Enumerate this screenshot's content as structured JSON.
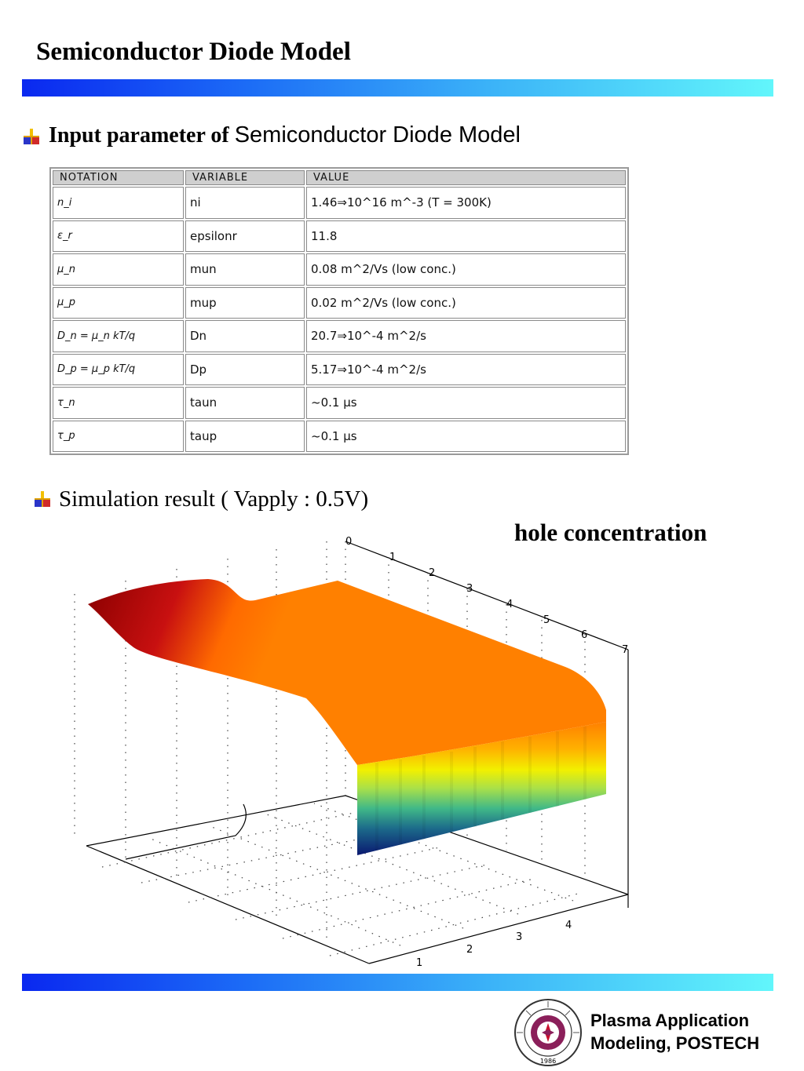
{
  "title": "Semiconductor Diode Model",
  "section1": {
    "label_bold": "Input parameter of ",
    "label_plain": "Semiconductor Diode Model"
  },
  "table": {
    "headers": [
      "NOTATION",
      "VARIABLE",
      "VALUE"
    ],
    "rows": [
      {
        "notation": "n_i",
        "variable": "ni",
        "value": "1.46⇒10^16 m^-3 (T = 300K)"
      },
      {
        "notation": "ε_r",
        "variable": "epsilonr",
        "value": "11.8"
      },
      {
        "notation": "μ_n",
        "variable": "mun",
        "value": "0.08 m^2/Vs (low conc.)"
      },
      {
        "notation": "μ_p",
        "variable": "mup",
        "value": "0.02 m^2/Vs (low conc.)"
      },
      {
        "notation": "D_n = μ_n kT/q",
        "variable": "Dn",
        "value": "20.7⇒10^-4 m^2/s"
      },
      {
        "notation": "D_p = μ_p kT/q",
        "variable": "Dp",
        "value": "5.17⇒10^-4 m^2/s"
      },
      {
        "notation": "τ_n",
        "variable": "taun",
        "value": "~0.1 μs"
      },
      {
        "notation": "τ_p",
        "variable": "taup",
        "value": "~0.1 μs"
      }
    ]
  },
  "section2": {
    "label": "Simulation result ( Vapply : 0.5V)",
    "plot_label": "hole concentration",
    "axis_top_ticks": [
      "0",
      "1",
      "2",
      "3",
      "4",
      "5",
      "6",
      "7"
    ],
    "axis_bottom_ticks": [
      "1",
      "2",
      "3",
      "4"
    ]
  },
  "footer": {
    "org_line1": "Plasma Application",
    "org_line2": "Modeling, POSTECH",
    "logo_year": "1986"
  },
  "colors": {
    "bar_start": "#0a28f0",
    "bar_end": "#62f6fb"
  }
}
